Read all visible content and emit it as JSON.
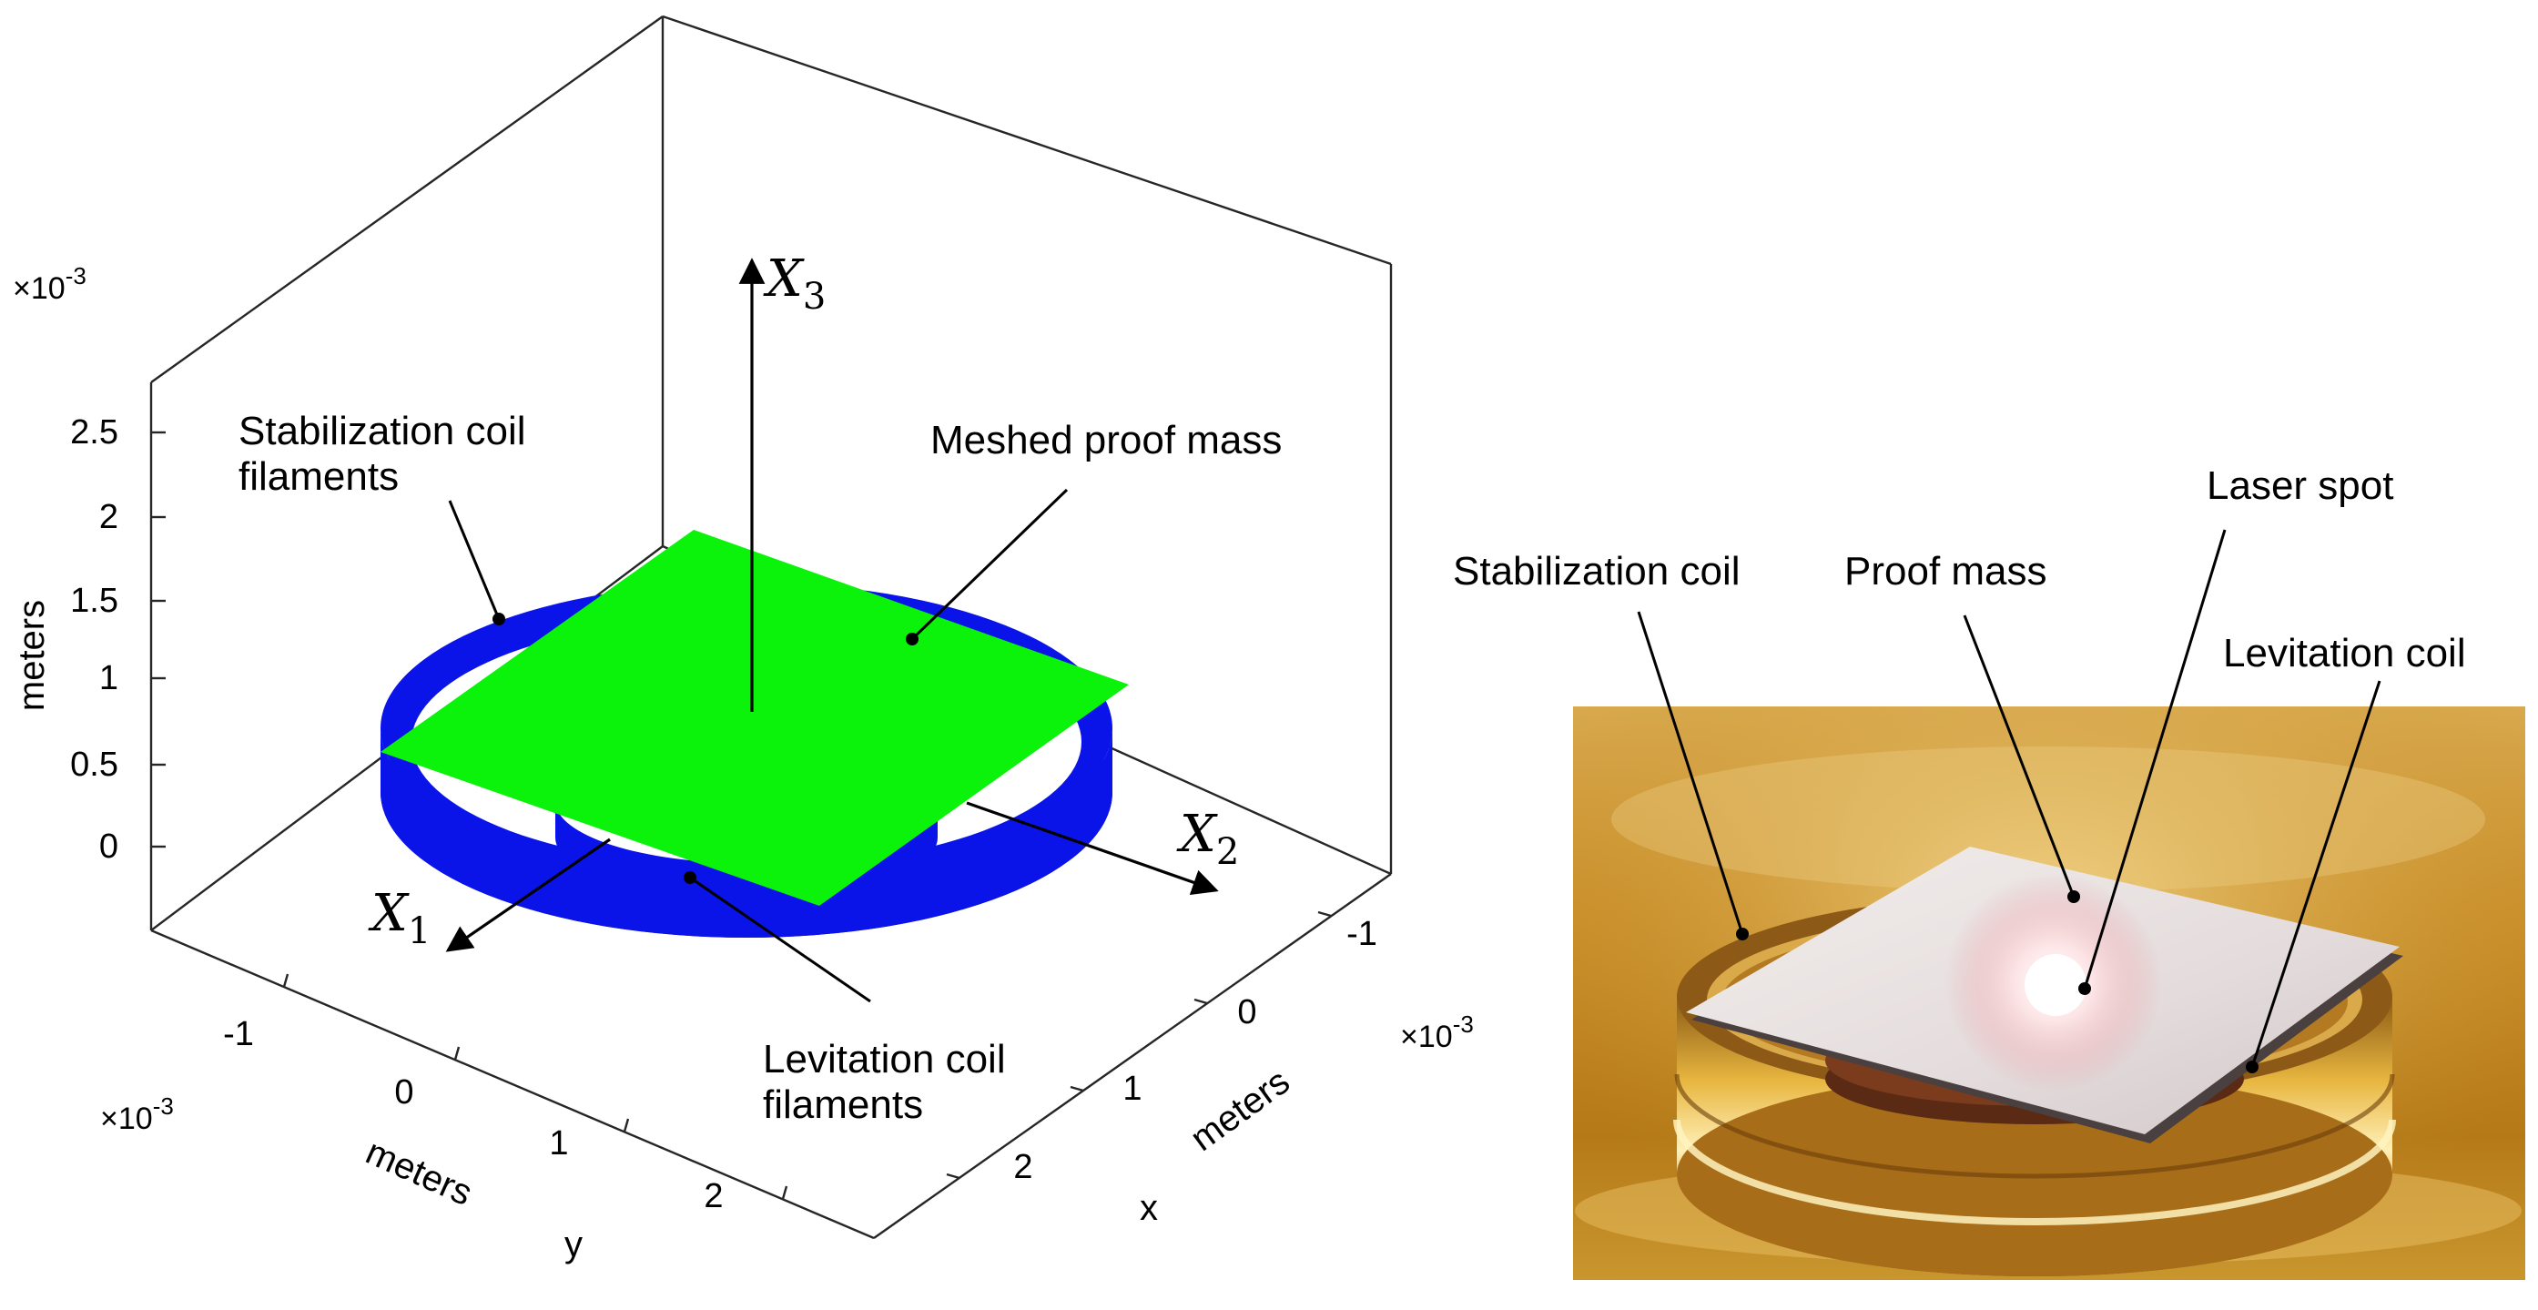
{
  "plot": {
    "axis_labels": {
      "z": "meters",
      "y_label": "meters",
      "y_letter": "y",
      "x_label": "meters",
      "x_letter": "x"
    },
    "scale": {
      "base": "×10",
      "exponent": "-3"
    },
    "z_ticks": [
      "2.5",
      "2",
      "1.5",
      "1",
      "0.5",
      "0"
    ],
    "y_ticks": [
      "-1",
      "0",
      "1",
      "2"
    ],
    "x_ticks": [
      "-1",
      "0",
      "1",
      "2"
    ],
    "frames": {
      "X1": {
        "letter": "X",
        "sub": "1"
      },
      "X2": {
        "letter": "X",
        "sub": "2"
      },
      "X3": {
        "letter": "X",
        "sub": "3"
      }
    },
    "annotations": {
      "stab_line1": "Stabilization coil",
      "stab_line2": "filaments",
      "mass": "Meshed proof mass",
      "lev_line1": "Levitation coil",
      "lev_line2": "filaments"
    },
    "colors": {
      "coil": "#0a14e8",
      "mass": "#0bf20b"
    }
  },
  "photo": {
    "labels": {
      "stabilization_coil": "Stabilization coil",
      "proof_mass": "Proof mass",
      "laser_spot": "Laser spot",
      "levitation_coil": "Levitation coil"
    },
    "colors": {
      "gold": "#c89a2a",
      "plate": "#e8e4e2"
    }
  }
}
